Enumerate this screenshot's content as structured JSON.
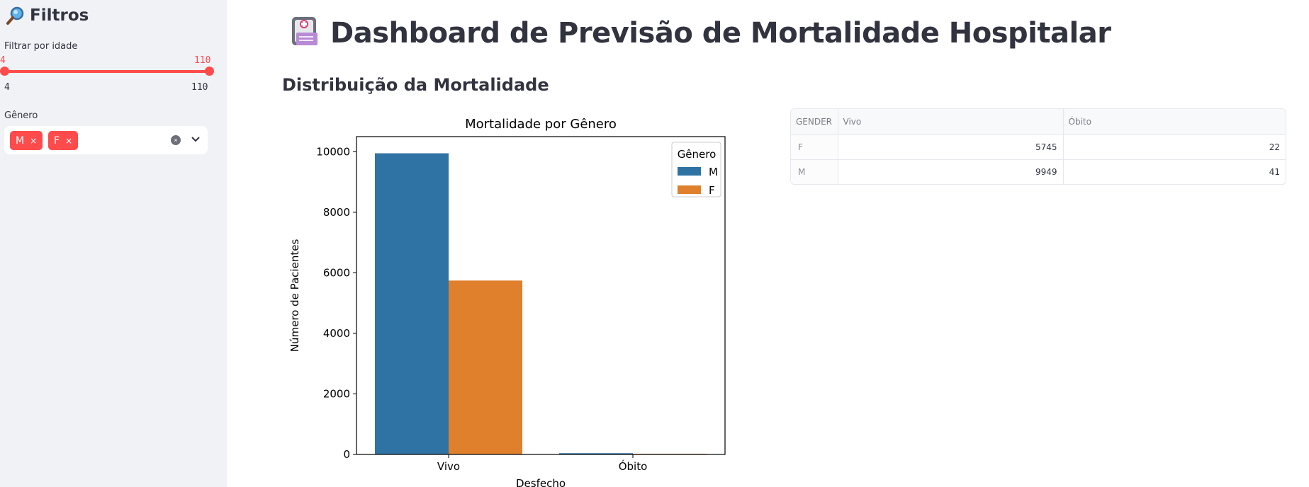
{
  "sidebar": {
    "title": "Filtros",
    "icon": "magnifying-glass-icon",
    "age_filter": {
      "label": "Filtrar por idade",
      "selected_min": "4",
      "selected_max": "110",
      "min": "4",
      "max": "110"
    },
    "gender_filter": {
      "label": "Gênero",
      "tags": [
        {
          "label": "M",
          "remove": "×"
        },
        {
          "label": "F",
          "remove": "×"
        }
      ],
      "clear": "×"
    }
  },
  "main": {
    "title": "Dashboard de Previsão de Mortalidade Hospitalar",
    "title_icon": "hospital-card-icon",
    "section_title": "Distribuição da Mortalidade"
  },
  "chart_data": {
    "type": "bar",
    "title": "Mortalidade por Gênero",
    "xlabel": "Desfecho",
    "ylabel": "Número de Pacientes",
    "categories": [
      "Vivo",
      "Óbito"
    ],
    "series": [
      {
        "name": "M",
        "values": [
          9949,
          41
        ],
        "color": "#2f72a4"
      },
      {
        "name": "F",
        "values": [
          5745,
          22
        ],
        "color": "#e0802c"
      }
    ],
    "ylim": [
      0,
      10500
    ],
    "yticks": [
      0,
      2000,
      4000,
      6000,
      8000,
      10000
    ],
    "legend_title": "Gênero",
    "legend_position": "top-right",
    "grid": false
  },
  "table": {
    "columns": [
      "GENDER",
      "Vivo",
      "Óbito"
    ],
    "rows": [
      [
        "F",
        "5745",
        "22"
      ],
      [
        "M",
        "9949",
        "41"
      ]
    ]
  },
  "colors": {
    "accent": "#ff4b4b",
    "sidebar_bg": "#f0f2f6",
    "text": "#31333f"
  }
}
